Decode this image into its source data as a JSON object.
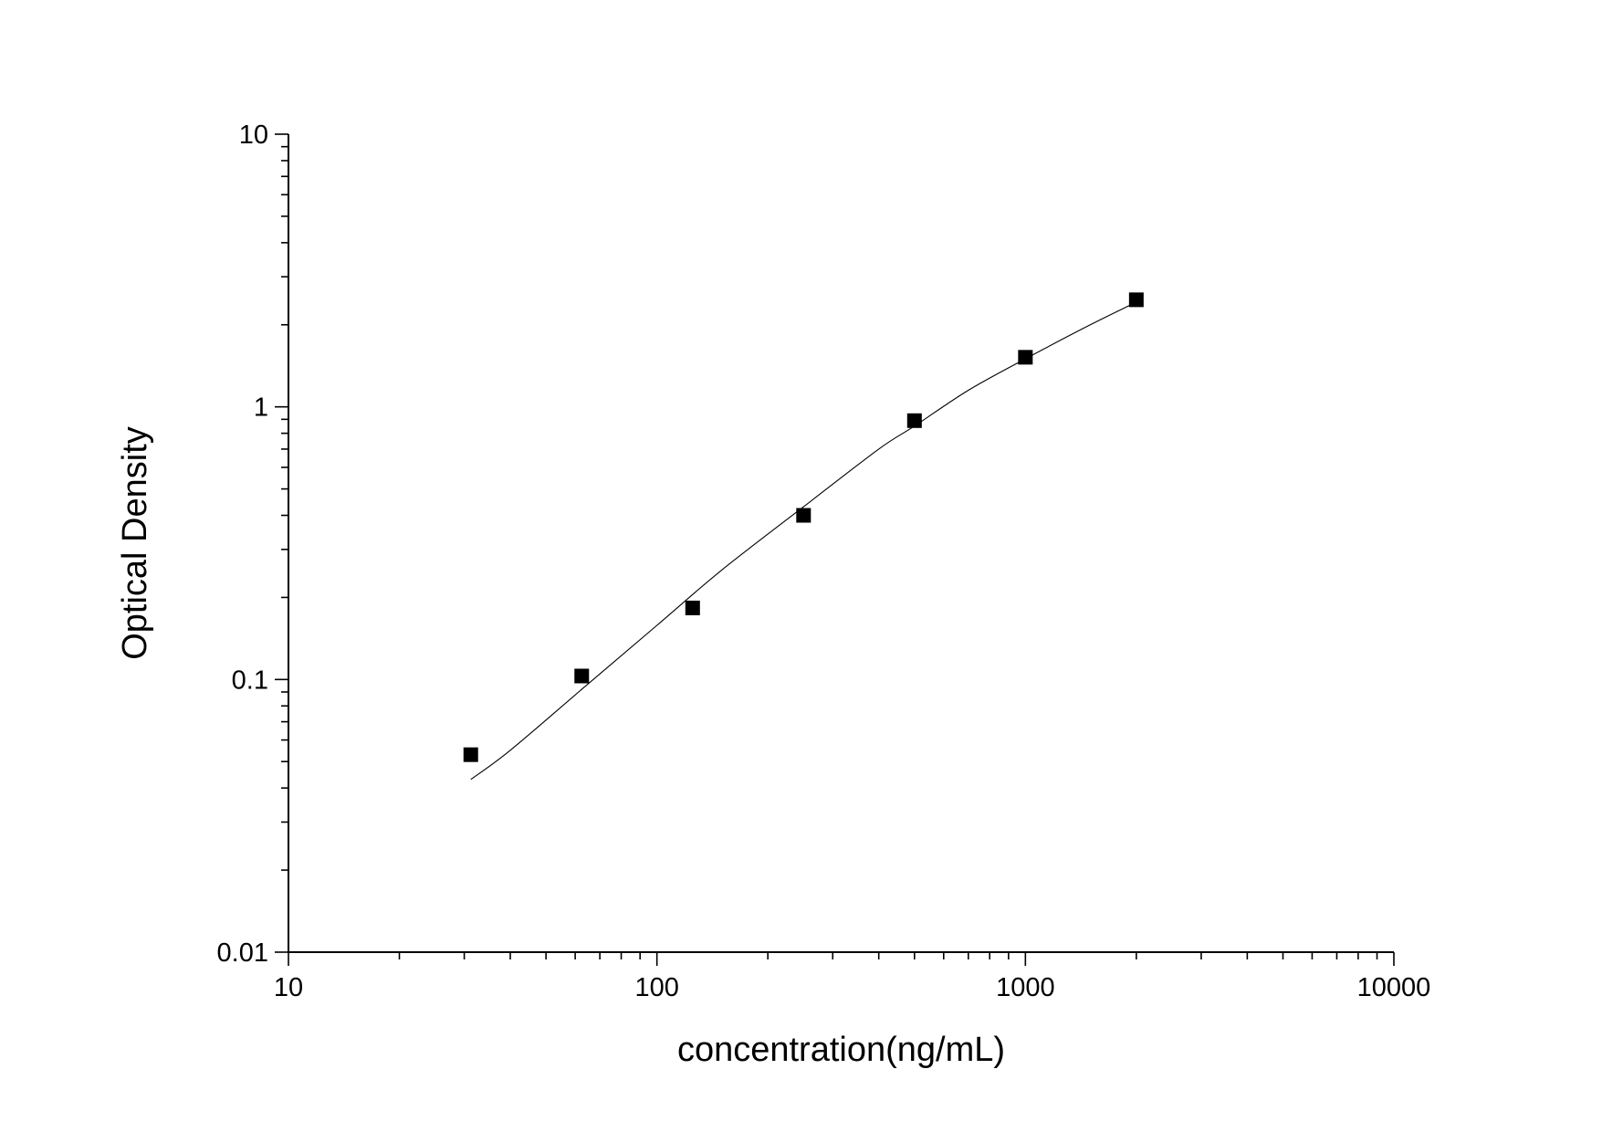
{
  "chart_data": {
    "type": "scatter",
    "title": "",
    "xlabel": "concentration(ng/mL)",
    "ylabel": "Optical Density",
    "x_scale": "log",
    "y_scale": "log",
    "xlim": [
      10,
      10000
    ],
    "ylim": [
      0.01,
      10
    ],
    "x_ticks": [
      10,
      100,
      1000,
      10000
    ],
    "x_tick_labels": [
      "10",
      "100",
      "1000",
      "10000"
    ],
    "y_ticks": [
      0.01,
      0.1,
      1,
      10
    ],
    "y_tick_labels": [
      "0.01",
      "0.1",
      "1",
      "10"
    ],
    "grid": false,
    "legend": "none",
    "series": [
      {
        "kind": "points",
        "marker": "square",
        "color": "#000000",
        "x": [
          31.25,
          62.5,
          125,
          250,
          500,
          1000,
          2000
        ],
        "y": [
          0.053,
          0.103,
          0.183,
          0.4,
          0.89,
          1.52,
          2.47
        ]
      },
      {
        "kind": "fitted-curve",
        "color": "#000000",
        "x": [
          31.25,
          40,
          62.5,
          100,
          150,
          250,
          400,
          500,
          700,
          1000,
          1500,
          2000
        ],
        "y": [
          0.043,
          0.055,
          0.092,
          0.158,
          0.252,
          0.43,
          0.7,
          0.85,
          1.15,
          1.5,
          2.0,
          2.42
        ]
      }
    ]
  }
}
